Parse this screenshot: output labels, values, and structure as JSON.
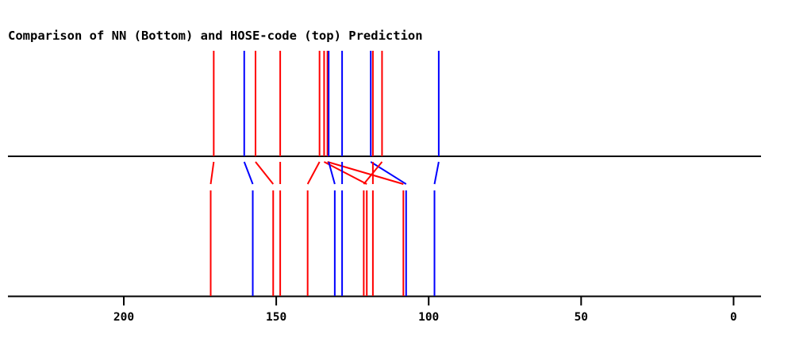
{
  "chart_data": {
    "type": "nmr-stick-comparison",
    "title": "Comparison of NN (Bottom) and HOSE-code (top) Prediction",
    "x_axis": {
      "reversed": true,
      "ticks": [
        200,
        150,
        100,
        50,
        0
      ],
      "range": [
        238,
        -9
      ]
    },
    "colors": {
      "red": "#ff0000",
      "blue": "#0000ff",
      "axis": "#000000"
    },
    "peaks": [
      {
        "top": 170.5,
        "bottom": 171.5,
        "color": "red"
      },
      {
        "top": 160.5,
        "bottom": 157.7,
        "color": "blue"
      },
      {
        "top": 156.8,
        "bottom": 151.0,
        "color": "red"
      },
      {
        "top": 148.7,
        "bottom": 148.7,
        "color": "red"
      },
      {
        "top": 135.8,
        "bottom": 139.7,
        "color": "red"
      },
      {
        "top": 134.3,
        "bottom": 120.3,
        "color": "red"
      },
      {
        "top": 133.2,
        "bottom": 108.3,
        "color": "red"
      },
      {
        "top": 132.8,
        "bottom": 130.8,
        "color": "blue"
      },
      {
        "top": 128.4,
        "bottom": 128.4,
        "color": "blue"
      },
      {
        "top": 119.0,
        "bottom": 107.4,
        "color": "blue"
      },
      {
        "top": 118.3,
        "bottom": 118.3,
        "color": "red"
      },
      {
        "top": 115.3,
        "bottom": 121.3,
        "color": "red"
      },
      {
        "top": 96.7,
        "bottom": 98.1,
        "color": "blue"
      }
    ]
  }
}
